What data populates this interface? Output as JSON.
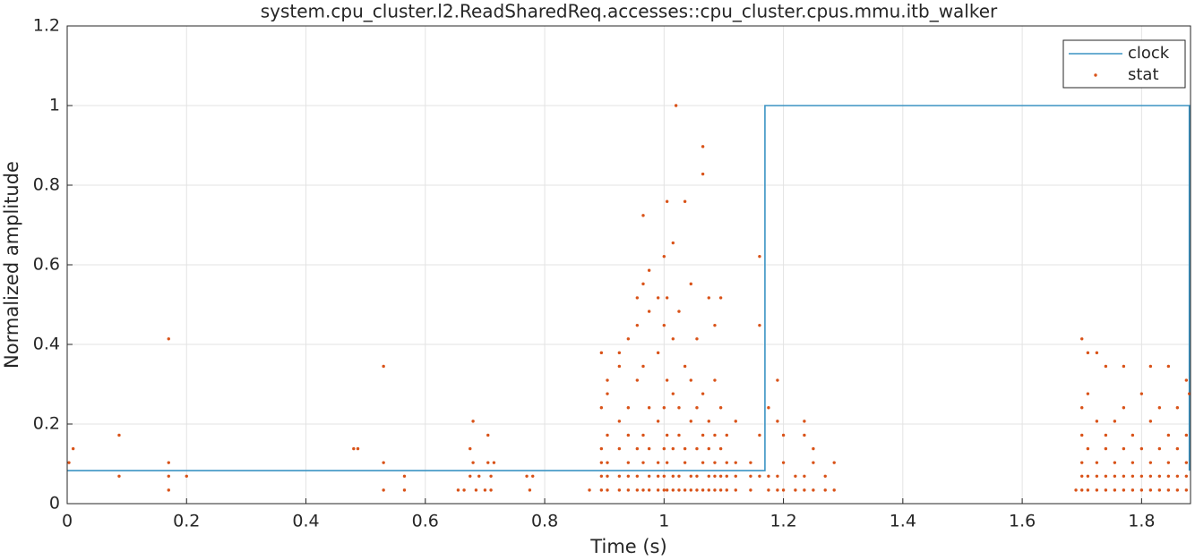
{
  "chart_data": {
    "type": "line",
    "title": "system.cpu_cluster.l2.ReadSharedReq.accesses::cpu_cluster.cpus.mmu.itb_walker",
    "x_label": "Time (s)",
    "y_label": "Normalized amplitude",
    "xlim": [
      0,
      1.882
    ],
    "ylim": [
      0,
      1.2
    ],
    "xticks": [
      0,
      0.2,
      0.4,
      0.6,
      0.8,
      1,
      1.2,
      1.4,
      1.6,
      1.8
    ],
    "yticks": [
      0,
      0.2,
      0.4,
      0.6,
      0.8,
      1,
      1.2
    ],
    "grid": true,
    "legend": "top-right",
    "series": [
      {
        "name": "clock",
        "type": "line",
        "color": "#3b94c4",
        "x": [
          0,
          1.169,
          1.169,
          1.88,
          1.88
        ],
        "values": [
          0.083,
          0.083,
          1,
          1,
          0.083
        ]
      },
      {
        "name": "stat",
        "type": "scatter",
        "color": "#d95319",
        "x": [
          0.003,
          0.01,
          0.087,
          0.087,
          0.17,
          0.17,
          0.17,
          0.17,
          0.2,
          0.48,
          0.487,
          0.53,
          0.53,
          0.53,
          0.565,
          0.565,
          0.655,
          0.665,
          0.675,
          0.675,
          0.68,
          0.68,
          0.685,
          0.69,
          0.7,
          0.705,
          0.705,
          0.71,
          0.71,
          0.715,
          0.77,
          0.775,
          0.78,
          0.875,
          0.895,
          0.895,
          0.895,
          0.895,
          0.895,
          0.895,
          0.905,
          0.905,
          0.905,
          0.905,
          0.905,
          0.905,
          0.925,
          0.925,
          0.925,
          0.925,
          0.925,
          0.925,
          0.94,
          0.94,
          0.94,
          0.94,
          0.94,
          0.94,
          0.955,
          0.955,
          0.955,
          0.955,
          0.955,
          0.955,
          0.965,
          0.965,
          0.965,
          0.965,
          0.965,
          0.965,
          0.975,
          0.975,
          0.975,
          0.975,
          0.975,
          0.975,
          0.99,
          0.99,
          0.99,
          0.99,
          0.99,
          0.99,
          1.0,
          1.0,
          1.0,
          1.0,
          1.0,
          1.0,
          1.005,
          1.005,
          1.005,
          1.005,
          1.005,
          1.005,
          1.015,
          1.015,
          1.015,
          1.015,
          1.015,
          1.015,
          1.02,
          1.025,
          1.025,
          1.025,
          1.025,
          1.025,
          1.035,
          1.035,
          1.035,
          1.035,
          1.035,
          1.045,
          1.045,
          1.045,
          1.045,
          1.045,
          1.055,
          1.055,
          1.055,
          1.055,
          1.055,
          1.065,
          1.065,
          1.065,
          1.065,
          1.065,
          1.065,
          1.075,
          1.075,
          1.075,
          1.075,
          1.075,
          1.085,
          1.085,
          1.085,
          1.085,
          1.085,
          1.085,
          1.095,
          1.095,
          1.095,
          1.095,
          1.095,
          1.105,
          1.105,
          1.105,
          1.105,
          1.12,
          1.12,
          1.12,
          1.12,
          1.145,
          1.145,
          1.145,
          1.16,
          1.16,
          1.16,
          1.16,
          1.175,
          1.175,
          1.175,
          1.19,
          1.19,
          1.19,
          1.19,
          1.2,
          1.2,
          1.2,
          1.22,
          1.22,
          1.235,
          1.235,
          1.235,
          1.235,
          1.25,
          1.25,
          1.25,
          1.27,
          1.27,
          1.285,
          1.285,
          1.69,
          1.7,
          1.7,
          1.7,
          1.7,
          1.7,
          1.7,
          1.71,
          1.71,
          1.71,
          1.71,
          1.71,
          1.725,
          1.725,
          1.725,
          1.725,
          1.725,
          1.74,
          1.74,
          1.74,
          1.74,
          1.74,
          1.755,
          1.755,
          1.755,
          1.755,
          1.77,
          1.77,
          1.77,
          1.77,
          1.77,
          1.785,
          1.785,
          1.785,
          1.785,
          1.8,
          1.8,
          1.8,
          1.8,
          1.815,
          1.815,
          1.815,
          1.815,
          1.815,
          1.83,
          1.83,
          1.83,
          1.83,
          1.845,
          1.845,
          1.845,
          1.845,
          1.845,
          1.86,
          1.86,
          1.86,
          1.86,
          1.875,
          1.875,
          1.875,
          1.875,
          1.875,
          1.88
        ],
        "values": [
          0.103,
          0.138,
          0.172,
          0.069,
          0.414,
          0.103,
          0.069,
          0.034,
          0.069,
          0.138,
          0.138,
          0.345,
          0.103,
          0.034,
          0.069,
          0.034,
          0.034,
          0.034,
          0.069,
          0.138,
          0.207,
          0.103,
          0.034,
          0.069,
          0.034,
          0.172,
          0.103,
          0.069,
          0.034,
          0.103,
          0.069,
          0.034,
          0.069,
          0.034,
          0.034,
          0.069,
          0.103,
          0.138,
          0.241,
          0.379,
          0.034,
          0.069,
          0.103,
          0.172,
          0.276,
          0.31,
          0.034,
          0.069,
          0.138,
          0.207,
          0.345,
          0.379,
          0.034,
          0.069,
          0.103,
          0.172,
          0.241,
          0.414,
          0.034,
          0.069,
          0.138,
          0.31,
          0.448,
          0.517,
          0.034,
          0.103,
          0.172,
          0.345,
          0.552,
          0.724,
          0.034,
          0.069,
          0.138,
          0.241,
          0.483,
          0.586,
          0.034,
          0.069,
          0.103,
          0.207,
          0.379,
          0.517,
          0.034,
          0.069,
          0.138,
          0.241,
          0.448,
          0.621,
          0.034,
          0.103,
          0.172,
          0.31,
          0.517,
          0.759,
          0.034,
          0.069,
          0.138,
          0.276,
          0.414,
          0.655,
          1.0,
          0.034,
          0.069,
          0.172,
          0.241,
          0.483,
          0.034,
          0.103,
          0.138,
          0.345,
          0.759,
          0.034,
          0.069,
          0.207,
          0.31,
          0.552,
          0.034,
          0.069,
          0.138,
          0.241,
          0.414,
          0.034,
          0.103,
          0.172,
          0.276,
          0.828,
          0.897,
          0.034,
          0.069,
          0.138,
          0.207,
          0.517,
          0.034,
          0.069,
          0.103,
          0.172,
          0.31,
          0.448,
          0.034,
          0.069,
          0.138,
          0.241,
          0.517,
          0.034,
          0.069,
          0.103,
          0.172,
          0.034,
          0.069,
          0.103,
          0.207,
          0.034,
          0.069,
          0.103,
          0.069,
          0.172,
          0.621,
          0.448,
          0.034,
          0.069,
          0.241,
          0.034,
          0.069,
          0.207,
          0.31,
          0.034,
          0.103,
          0.172,
          0.034,
          0.069,
          0.034,
          0.069,
          0.172,
          0.207,
          0.034,
          0.103,
          0.138,
          0.034,
          0.069,
          0.034,
          0.103,
          0.034,
          0.034,
          0.069,
          0.103,
          0.172,
          0.241,
          0.414,
          0.034,
          0.069,
          0.138,
          0.276,
          0.379,
          0.034,
          0.069,
          0.103,
          0.207,
          0.379,
          0.034,
          0.069,
          0.138,
          0.172,
          0.345,
          0.034,
          0.069,
          0.103,
          0.207,
          0.034,
          0.069,
          0.138,
          0.241,
          0.345,
          0.034,
          0.069,
          0.103,
          0.172,
          0.034,
          0.069,
          0.138,
          0.276,
          0.034,
          0.069,
          0.103,
          0.207,
          0.345,
          0.034,
          0.069,
          0.138,
          0.241,
          0.034,
          0.069,
          0.103,
          0.172,
          0.345,
          0.034,
          0.069,
          0.138,
          0.241,
          0.034,
          0.069,
          0.103,
          0.172,
          0.31,
          0.276
        ]
      }
    ]
  }
}
